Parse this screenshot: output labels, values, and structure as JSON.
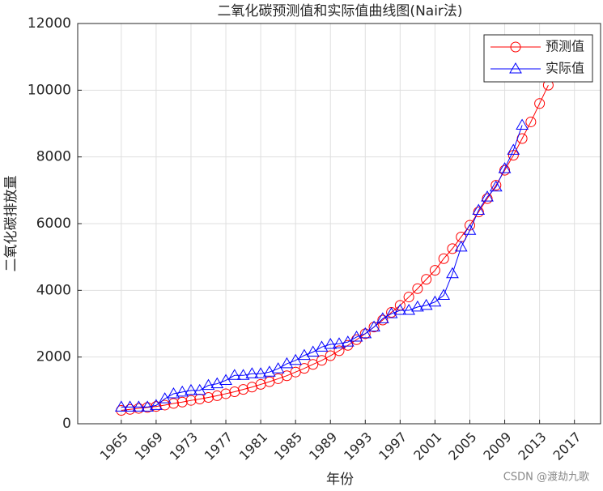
{
  "chart_data": {
    "type": "line",
    "title": "二氧化碳预测值和实际值曲线图(Nair法)",
    "x_label": "年份",
    "y_label": "二氧化碳排放量",
    "x": [
      1965,
      1966,
      1967,
      1968,
      1969,
      1970,
      1971,
      1972,
      1973,
      1974,
      1975,
      1976,
      1977,
      1978,
      1979,
      1980,
      1981,
      1982,
      1983,
      1984,
      1985,
      1986,
      1987,
      1988,
      1989,
      1990,
      1991,
      1992,
      1993,
      1994,
      1995,
      1996,
      1997,
      1998,
      1999,
      2000,
      2001,
      2002,
      2003,
      2004,
      2005,
      2006,
      2007,
      2008,
      2009,
      2010,
      2011,
      2012,
      2013,
      2014
    ],
    "series": [
      {
        "name": "预测值",
        "color": "#ff0000",
        "marker": "circle",
        "values": [
          400,
          430,
          460,
          490,
          520,
          560,
          610,
          650,
          700,
          740,
          790,
          840,
          900,
          960,
          1030,
          1100,
          1180,
          1260,
          1350,
          1440,
          1550,
          1660,
          1780,
          1900,
          2040,
          2190,
          2350,
          2520,
          2700,
          2900,
          3110,
          3340,
          3550,
          3800,
          4050,
          4330,
          4600,
          4950,
          5250,
          5600,
          5950,
          6350,
          6750,
          7150,
          7600,
          8050,
          8550,
          9050,
          9600,
          10150
        ]
      },
      {
        "name": "实际值",
        "color": "#0000ff",
        "marker": "triangle",
        "values": [
          500,
          500,
          500,
          500,
          550,
          750,
          900,
          950,
          1000,
          1000,
          1150,
          1200,
          1300,
          1450,
          1450,
          1500,
          1500,
          1550,
          1650,
          1800,
          1900,
          2050,
          2150,
          2300,
          2380,
          2400,
          2450,
          2600,
          2700,
          2900,
          3150,
          3300,
          3400,
          3400,
          3500,
          3550,
          3650,
          3850,
          4500,
          5300,
          5800,
          6400,
          6800,
          7100,
          7650,
          8200,
          8950,
          null,
          null,
          null
        ]
      }
    ],
    "xlim": [
      1960,
      2020
    ],
    "xticks": [
      1965,
      1969,
      1973,
      1977,
      1981,
      1985,
      1989,
      1993,
      1997,
      2001,
      2005,
      2009,
      2013,
      2017
    ],
    "ylim": [
      0,
      12000
    ],
    "yticks": [
      0,
      2000,
      4000,
      6000,
      8000,
      10000,
      12000
    ],
    "grid": true,
    "legend": "upper right",
    "watermark": "CSDN @渡劫九歌"
  }
}
